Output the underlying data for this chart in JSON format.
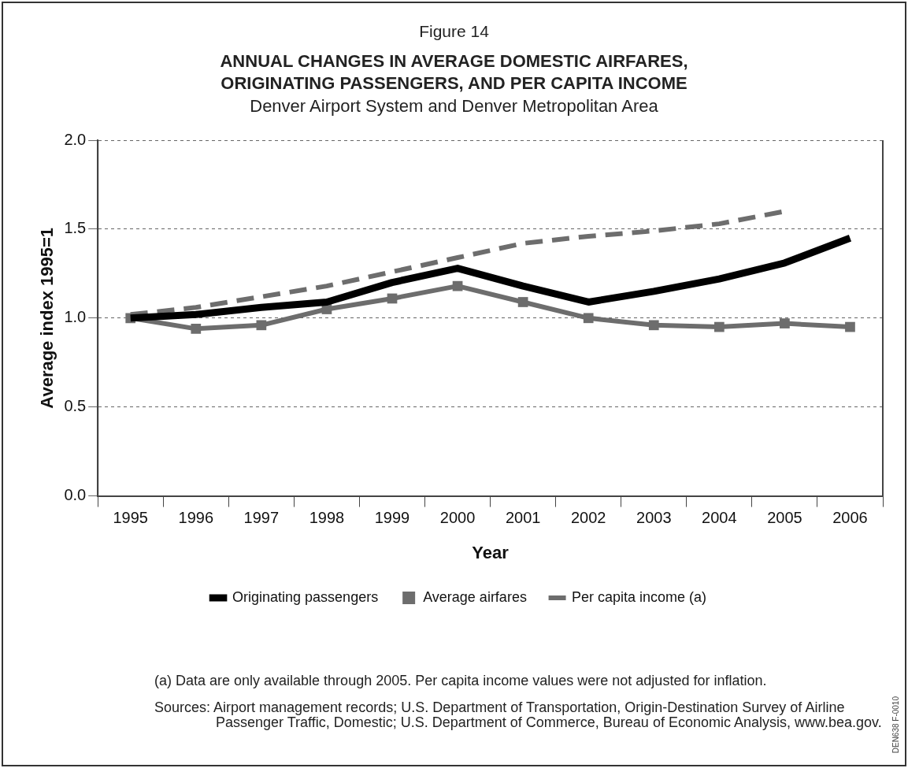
{
  "chart_data": {
    "type": "line",
    "title": "ANNUAL CHANGES IN AVERAGE DOMESTIC AIRFARES, ORIGINATING PASSENGERS, AND PER CAPITA INCOME",
    "subtitle": "Denver Airport System and Denver Metropolitan Area",
    "xlabel": "Year",
    "ylabel": "Average index 1995=1",
    "categories": [
      "1995",
      "1996",
      "1997",
      "1998",
      "1999",
      "2000",
      "2001",
      "2002",
      "2003",
      "2004",
      "2005",
      "2006"
    ],
    "series": [
      {
        "name": "Originating passengers",
        "color": "#000000",
        "marker": "none",
        "line_style": "solid",
        "values": [
          1.0,
          1.02,
          1.06,
          1.09,
          1.2,
          1.28,
          1.18,
          1.09,
          1.15,
          1.22,
          1.31,
          1.45
        ]
      },
      {
        "name": "Average airfares",
        "color": "#6d6d6d",
        "marker": "square",
        "line_style": "solid",
        "values": [
          1.0,
          0.94,
          0.96,
          1.05,
          1.11,
          1.18,
          1.09,
          1.0,
          0.96,
          0.95,
          0.97,
          0.95
        ]
      },
      {
        "name": "Per capita income (a)",
        "color": "#6d6d6d",
        "marker": "none",
        "line_style": "dashed",
        "values": [
          1.02,
          1.06,
          1.12,
          1.18,
          1.26,
          1.34,
          1.42,
          1.46,
          1.49,
          1.53,
          1.6,
          null
        ]
      }
    ],
    "ylim": [
      0,
      2
    ],
    "yticks": [
      {
        "value": 0,
        "label": "0.0"
      },
      0.5,
      {
        "value": 1,
        "label": "1.0"
      },
      1.5,
      {
        "value": 2,
        "label": "2.0"
      }
    ],
    "grid": "y",
    "legend": "bottom",
    "annotations": [
      "Figure 14",
      "(a) Data are only available through 2005. Per capita income values were not adjusted for inflation.",
      "Sources: Airport management records; U.S. Department of Transportation, Origin-Destination Survey of Airline Passenger Traffic, Domestic; U.S. Department of Commerce, Bureau of Economic Analysis, www.bea.gov.",
      "DEN638 F-0010"
    ]
  }
}
